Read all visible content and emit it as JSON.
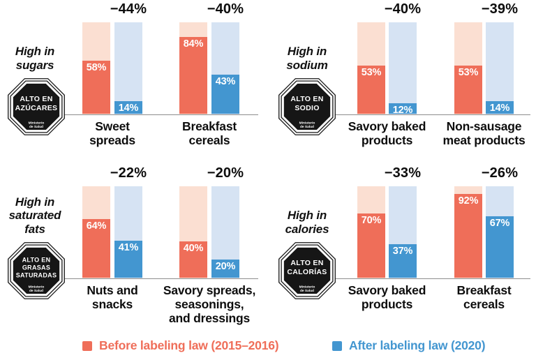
{
  "colors": {
    "before": "#EF6E59",
    "before_light": "#FBDFD2",
    "after": "#4396D0",
    "after_light": "#D6E3F3",
    "octagon": "#161616",
    "text": "#0d0d0d",
    "axis_line": "#8d8d8d",
    "value_label": "#ffffff"
  },
  "legend": {
    "before_label": "Before labeling law (2015–2016)",
    "after_label": "After labeling law (2020)"
  },
  "chart_data": {
    "type": "bar",
    "value_unit": "%",
    "ylim": [
      0,
      100
    ],
    "grid": false,
    "legend_position": "bottom",
    "series_names": [
      "Before labeling law (2015–2016)",
      "After labeling law (2020)"
    ],
    "panels": [
      {
        "title": "High in sugars",
        "title_lines": [
          "High in",
          "sugars"
        ],
        "warning_sign_lines": [
          "ALTO EN",
          "AZÚCARES"
        ],
        "warning_sign_footer_lines": [
          "Ministerio",
          "de Salud"
        ],
        "groups": [
          {
            "category": "Sweet spreads",
            "category_lines": [
              "Sweet",
              "spreads"
            ],
            "before_pct": 58,
            "after_pct": 14,
            "change_pct": -44,
            "change_label": "−44%"
          },
          {
            "category": "Breakfast cereals",
            "category_lines": [
              "Breakfast",
              "cereals"
            ],
            "before_pct": 84,
            "after_pct": 43,
            "change_pct": -40,
            "change_label": "−40%"
          }
        ]
      },
      {
        "title": "High in sodium",
        "title_lines": [
          "High in",
          "sodium"
        ],
        "warning_sign_lines": [
          "ALTO EN",
          "SODIO"
        ],
        "warning_sign_footer_lines": [
          "Ministerio",
          "de Salud"
        ],
        "groups": [
          {
            "category": "Savory baked products",
            "category_lines": [
              "Savory baked",
              "products"
            ],
            "before_pct": 53,
            "after_pct": 12,
            "change_pct": -40,
            "change_label": "−40%"
          },
          {
            "category": "Non-sausage meat products",
            "category_lines": [
              "Non-sausage",
              "meat products"
            ],
            "before_pct": 53,
            "after_pct": 14,
            "change_pct": -39,
            "change_label": "−39%"
          }
        ]
      },
      {
        "title": "High in saturated fats",
        "title_lines": [
          "High in",
          "saturated",
          "fats"
        ],
        "warning_sign_lines": [
          "ALTO EN",
          "GRASAS",
          "SATURADAS"
        ],
        "warning_sign_footer_lines": [
          "Ministerio",
          "de Salud"
        ],
        "groups": [
          {
            "category": "Nuts and snacks",
            "category_lines": [
              "Nuts and",
              "snacks"
            ],
            "before_pct": 64,
            "after_pct": 41,
            "change_pct": -22,
            "change_label": "−22%"
          },
          {
            "category": "Savory spreads, seasonings, and dressings",
            "category_lines": [
              "Savory spreads,",
              "seasonings,",
              "and dressings"
            ],
            "before_pct": 40,
            "after_pct": 20,
            "change_pct": -20,
            "change_label": "−20%"
          }
        ]
      },
      {
        "title": "High in calories",
        "title_lines": [
          "High in",
          "calories"
        ],
        "warning_sign_lines": [
          "ALTO EN",
          "CALORÍAS"
        ],
        "warning_sign_footer_lines": [
          "Ministerio",
          "de Salud"
        ],
        "groups": [
          {
            "category": "Savory baked products",
            "category_lines": [
              "Savory baked",
              "products"
            ],
            "before_pct": 70,
            "after_pct": 37,
            "change_pct": -33,
            "change_label": "−33%"
          },
          {
            "category": "Breakfast cereals",
            "category_lines": [
              "Breakfast",
              "cereals"
            ],
            "before_pct": 92,
            "after_pct": 67,
            "change_pct": -26,
            "change_label": "−26%"
          }
        ]
      }
    ]
  }
}
